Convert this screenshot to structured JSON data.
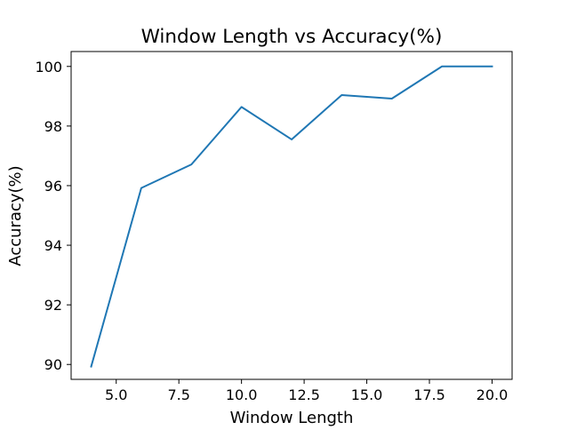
{
  "chart_data": {
    "type": "line",
    "title": "Window Length vs Accuracy(%)",
    "xlabel": "Window Length",
    "ylabel": "Accuracy(%)",
    "xlim": [
      3.2,
      20.8
    ],
    "ylim": [
      89.5,
      100.5
    ],
    "x_ticks": [
      5.0,
      7.5,
      10.0,
      12.5,
      15.0,
      17.5,
      20.0
    ],
    "x_tick_labels": [
      "5.0",
      "7.5",
      "10.0",
      "12.5",
      "15.0",
      "17.5",
      "20.0"
    ],
    "y_ticks": [
      90,
      92,
      94,
      96,
      98,
      100
    ],
    "y_tick_labels": [
      "90",
      "92",
      "94",
      "96",
      "98",
      "100"
    ],
    "grid": false,
    "series": [
      {
        "color": "#1f77b4",
        "x": [
          4,
          6,
          8,
          10,
          12,
          14,
          16,
          18,
          20
        ],
        "y": [
          89.93,
          95.92,
          96.71,
          98.64,
          97.55,
          99.04,
          98.92,
          100.0,
          100.0
        ]
      }
    ]
  }
}
